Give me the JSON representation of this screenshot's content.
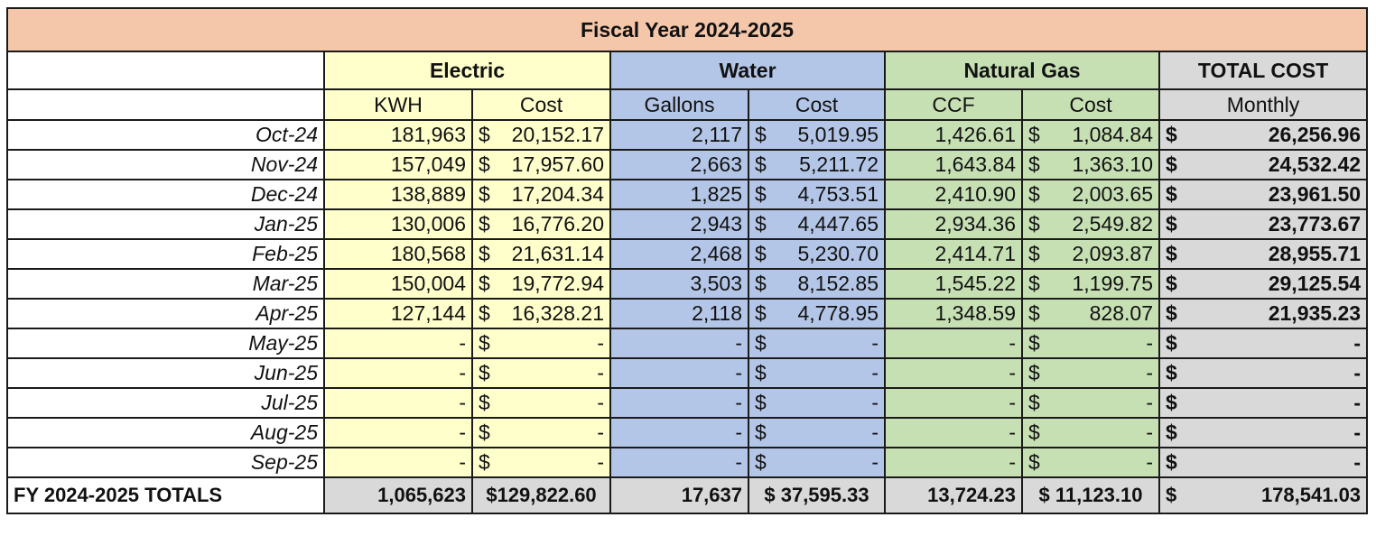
{
  "title": "Fiscal Year 2024-2025",
  "groups": {
    "electric": "Electric",
    "water": "Water",
    "gas": "Natural Gas",
    "total": "TOTAL COST"
  },
  "subheaders": {
    "kwh": "KWH",
    "electric_cost": "Cost",
    "gallons": "Gallons",
    "water_cost": "Cost",
    "ccf": "CCF",
    "gas_cost": "Cost",
    "monthly": "Monthly"
  },
  "currency": "$",
  "rows": [
    {
      "month": "Oct-24",
      "kwh": "181,963",
      "e_cost": "20,152.17",
      "gallons": "2,117",
      "w_cost": "5,019.95",
      "ccf": "1,426.61",
      "g_cost": "1,084.84",
      "total": "26,256.96"
    },
    {
      "month": "Nov-24",
      "kwh": "157,049",
      "e_cost": "17,957.60",
      "gallons": "2,663",
      "w_cost": "5,211.72",
      "ccf": "1,643.84",
      "g_cost": "1,363.10",
      "total": "24,532.42"
    },
    {
      "month": "Dec-24",
      "kwh": "138,889",
      "e_cost": "17,204.34",
      "gallons": "1,825",
      "w_cost": "4,753.51",
      "ccf": "2,410.90",
      "g_cost": "2,003.65",
      "total": "23,961.50"
    },
    {
      "month": "Jan-25",
      "kwh": "130,006",
      "e_cost": "16,776.20",
      "gallons": "2,943",
      "w_cost": "4,447.65",
      "ccf": "2,934.36",
      "g_cost": "2,549.82",
      "total": "23,773.67"
    },
    {
      "month": "Feb-25",
      "kwh": "180,568",
      "e_cost": "21,631.14",
      "gallons": "2,468",
      "w_cost": "5,230.70",
      "ccf": "2,414.71",
      "g_cost": "2,093.87",
      "total": "28,955.71"
    },
    {
      "month": "Mar-25",
      "kwh": "150,004",
      "e_cost": "19,772.94",
      "gallons": "3,503",
      "w_cost": "8,152.85",
      "ccf": "1,545.22",
      "g_cost": "1,199.75",
      "total": "29,125.54"
    },
    {
      "month": "Apr-25",
      "kwh": "127,144",
      "e_cost": "16,328.21",
      "gallons": "2,118",
      "w_cost": "4,778.95",
      "ccf": "1,348.59",
      "g_cost": "828.07",
      "total": "21,935.23"
    },
    {
      "month": "May-25",
      "kwh": "-",
      "e_cost": "-",
      "gallons": "-",
      "w_cost": "-",
      "ccf": "-",
      "g_cost": "-",
      "total": "-"
    },
    {
      "month": "Jun-25",
      "kwh": "-",
      "e_cost": "-",
      "gallons": "-",
      "w_cost": "-",
      "ccf": "-",
      "g_cost": "-",
      "total": "-"
    },
    {
      "month": "Jul-25",
      "kwh": "-",
      "e_cost": "-",
      "gallons": "-",
      "w_cost": "-",
      "ccf": "-",
      "g_cost": "-",
      "total": "-"
    },
    {
      "month": "Aug-25",
      "kwh": "-",
      "e_cost": "-",
      "gallons": "-",
      "w_cost": "-",
      "ccf": "-",
      "g_cost": "-",
      "total": "-"
    },
    {
      "month": "Sep-25",
      "kwh": "-",
      "e_cost": "-",
      "gallons": "-",
      "w_cost": "-",
      "ccf": "-",
      "g_cost": "-",
      "total": "-"
    }
  ],
  "totals": {
    "label": "FY 2024-2025 TOTALS",
    "kwh": "1,065,623",
    "e_cost": "$129,822.60",
    "gallons": "17,637",
    "w_cost": "$ 37,595.33",
    "ccf": "13,724.23",
    "g_cost": "$ 11,123.10",
    "total_sym": "$",
    "total": "178,541.03"
  },
  "colors": {
    "title_bg": "#f4c7ab",
    "electric_bg": "#ffffcc",
    "water_bg": "#b4c6e7",
    "gas_bg": "#c6e0b4",
    "total_bg": "#d9d9d9"
  }
}
